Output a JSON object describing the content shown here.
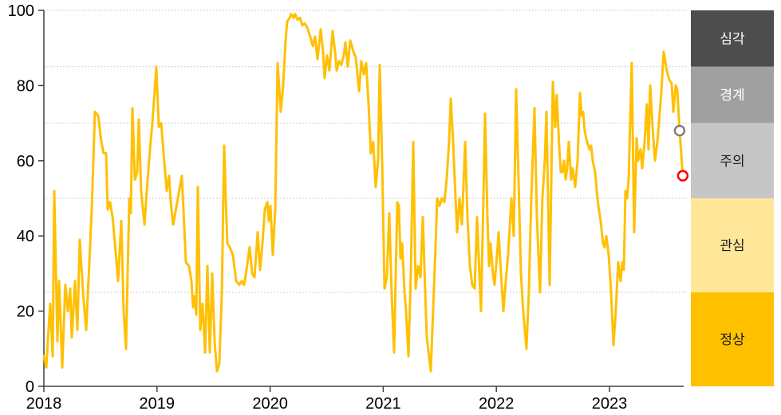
{
  "chart_data": {
    "type": "line",
    "title": "",
    "xlabel": "",
    "ylabel": "",
    "ylim": [
      0,
      100
    ],
    "yticks": [
      0,
      20,
      40,
      60,
      80,
      100
    ],
    "xticks": [
      2018,
      2019,
      2020,
      2021,
      2022,
      2023
    ],
    "gridlines": [
      25,
      50,
      70,
      85,
      100
    ],
    "grid_style": "dotted",
    "line_color": "#FFC003",
    "axis_color": "#404040",
    "tick_label_color": "#000000",
    "gridline_color": "#BFBFBF",
    "bands": [
      {
        "label": "심각",
        "range": [
          85,
          100
        ],
        "color": "#4D4D4D",
        "text_color": "#FFFFFF"
      },
      {
        "label": "경계",
        "range": [
          70,
          85
        ],
        "color": "#A0A0A0",
        "text_color": "#FFFFFF"
      },
      {
        "label": "주의",
        "range": [
          50,
          70
        ],
        "color": "#C6C6C6",
        "text_color": "#1A1A1A"
      },
      {
        "label": "관심",
        "range": [
          25,
          50
        ],
        "color": "#FFE699",
        "text_color": "#1A1A1A"
      },
      {
        "label": "정상",
        "range": [
          0,
          25
        ],
        "color": "#FFC000",
        "text_color": "#1A1A1A"
      }
    ],
    "markers": [
      {
        "x": 2023.62,
        "y": 68,
        "stroke": "#7F7F7F",
        "fill": "#FFFFFF",
        "name": "previous-point-marker"
      },
      {
        "x": 2023.648,
        "y": 56,
        "stroke": "#FF0000",
        "fill": "#FFFFFF",
        "name": "latest-point-marker"
      }
    ],
    "series": [
      {
        "name": "index",
        "color": "#FFC003",
        "points": [
          [
            2018.0,
            8
          ],
          [
            2018.021,
            5
          ],
          [
            2018.056,
            22
          ],
          [
            2018.078,
            8
          ],
          [
            2018.092,
            52
          ],
          [
            2018.12,
            12
          ],
          [
            2018.134,
            28
          ],
          [
            2018.162,
            5
          ],
          [
            2018.19,
            27
          ],
          [
            2018.212,
            20
          ],
          [
            2018.233,
            26
          ],
          [
            2018.247,
            13
          ],
          [
            2018.275,
            28
          ],
          [
            2018.296,
            15
          ],
          [
            2018.317,
            39
          ],
          [
            2018.346,
            25
          ],
          [
            2018.374,
            15
          ],
          [
            2018.402,
            33
          ],
          [
            2018.423,
            47
          ],
          [
            2018.451,
            73
          ],
          [
            2018.48,
            72
          ],
          [
            2018.508,
            65
          ],
          [
            2018.529,
            62
          ],
          [
            2018.55,
            62
          ],
          [
            2018.564,
            47
          ],
          [
            2018.585,
            49
          ],
          [
            2018.607,
            45
          ],
          [
            2018.628,
            38
          ],
          [
            2018.656,
            28
          ],
          [
            2018.684,
            44
          ],
          [
            2018.705,
            20
          ],
          [
            2018.726,
            10
          ],
          [
            2018.755,
            50
          ],
          [
            2018.769,
            46
          ],
          [
            2018.783,
            74
          ],
          [
            2018.804,
            55
          ],
          [
            2018.825,
            57
          ],
          [
            2018.839,
            71
          ],
          [
            2018.86,
            52
          ],
          [
            2018.889,
            43
          ],
          [
            2018.91,
            52
          ],
          [
            2018.938,
            63
          ],
          [
            2018.959,
            70
          ],
          [
            2018.98,
            79
          ],
          [
            2018.994,
            85
          ],
          [
            2019.016,
            69
          ],
          [
            2019.037,
            70
          ],
          [
            2019.058,
            62
          ],
          [
            2019.086,
            52
          ],
          [
            2019.107,
            56
          ],
          [
            2019.121,
            49
          ],
          [
            2019.143,
            43
          ],
          [
            2019.22,
            56
          ],
          [
            2019.255,
            33
          ],
          [
            2019.283,
            32
          ],
          [
            2019.305,
            28
          ],
          [
            2019.319,
            21
          ],
          [
            2019.333,
            24
          ],
          [
            2019.347,
            19
          ],
          [
            2019.361,
            53
          ],
          [
            2019.382,
            15
          ],
          [
            2019.403,
            22
          ],
          [
            2019.425,
            9
          ],
          [
            2019.446,
            32
          ],
          [
            2019.467,
            9
          ],
          [
            2019.488,
            30
          ],
          [
            2019.509,
            12
          ],
          [
            2019.53,
            4
          ],
          [
            2019.551,
            6
          ],
          [
            2019.573,
            25
          ],
          [
            2019.594,
            64
          ],
          [
            2019.608,
            50
          ],
          [
            2019.622,
            38
          ],
          [
            2019.643,
            37
          ],
          [
            2019.671,
            35
          ],
          [
            2019.7,
            28
          ],
          [
            2019.728,
            27
          ],
          [
            2019.749,
            28
          ],
          [
            2019.77,
            27
          ],
          [
            2019.791,
            31
          ],
          [
            2019.819,
            37
          ],
          [
            2019.841,
            30
          ],
          [
            2019.862,
            29
          ],
          [
            2019.89,
            41
          ],
          [
            2019.911,
            31
          ],
          [
            2019.932,
            38
          ],
          [
            2019.953,
            47
          ],
          [
            2019.975,
            49
          ],
          [
            2019.989,
            44
          ],
          [
            2020.003,
            48
          ],
          [
            2020.024,
            35
          ],
          [
            2020.045,
            47
          ],
          [
            2020.066,
            86
          ],
          [
            2020.094,
            73
          ],
          [
            2020.115,
            80
          ],
          [
            2020.137,
            92
          ],
          [
            2020.151,
            97
          ],
          [
            2020.172,
            98
          ],
          [
            2020.186,
            99
          ],
          [
            2020.207,
            98
          ],
          [
            2020.221,
            99
          ],
          [
            2020.243,
            97.5
          ],
          [
            2020.264,
            98
          ],
          [
            2020.285,
            96
          ],
          [
            2020.306,
            96.5
          ],
          [
            2020.327,
            95.5
          ],
          [
            2020.355,
            93
          ],
          [
            2020.377,
            90.5
          ],
          [
            2020.398,
            93
          ],
          [
            2020.419,
            87
          ],
          [
            2020.447,
            95
          ],
          [
            2020.468,
            89
          ],
          [
            2020.482,
            82
          ],
          [
            2020.503,
            88
          ],
          [
            2020.524,
            84
          ],
          [
            2020.553,
            94.5
          ],
          [
            2020.574,
            89
          ],
          [
            2020.588,
            84
          ],
          [
            2020.609,
            86.5
          ],
          [
            2020.63,
            85.5
          ],
          [
            2020.651,
            88
          ],
          [
            2020.666,
            91.5
          ],
          [
            2020.687,
            85
          ],
          [
            2020.708,
            92
          ],
          [
            2020.736,
            89
          ],
          [
            2020.757,
            87.5
          ],
          [
            2020.786,
            78.5
          ],
          [
            2020.807,
            86.5
          ],
          [
            2020.828,
            83
          ],
          [
            2020.849,
            86
          ],
          [
            2020.87,
            75
          ],
          [
            2020.891,
            62
          ],
          [
            2020.912,
            65
          ],
          [
            2020.933,
            53
          ],
          [
            2020.954,
            60
          ],
          [
            2020.969,
            85.5
          ],
          [
            2020.99,
            60
          ],
          [
            2021.011,
            26
          ],
          [
            2021.032,
            29
          ],
          [
            2021.053,
            46
          ],
          [
            2021.074,
            25
          ],
          [
            2021.096,
            9
          ],
          [
            2021.124,
            49
          ],
          [
            2021.138,
            48
          ],
          [
            2021.152,
            34
          ],
          [
            2021.167,
            38
          ],
          [
            2021.188,
            25
          ],
          [
            2021.202,
            20
          ],
          [
            2021.223,
            8
          ],
          [
            2021.244,
            30
          ],
          [
            2021.265,
            65
          ],
          [
            2021.286,
            26
          ],
          [
            2021.308,
            32
          ],
          [
            2021.329,
            29
          ],
          [
            2021.35,
            45
          ],
          [
            2021.371,
            25
          ],
          [
            2021.385,
            13
          ],
          [
            2021.42,
            4
          ],
          [
            2021.441,
            20
          ],
          [
            2021.463,
            38
          ],
          [
            2021.477,
            50
          ],
          [
            2021.498,
            48
          ],
          [
            2021.519,
            50
          ],
          [
            2021.54,
            49
          ],
          [
            2021.561,
            55
          ],
          [
            2021.582,
            65
          ],
          [
            2021.597,
            76.5
          ],
          [
            2021.618,
            65
          ],
          [
            2021.632,
            55
          ],
          [
            2021.653,
            41
          ],
          [
            2021.674,
            50
          ],
          [
            2021.695,
            43
          ],
          [
            2021.724,
            65
          ],
          [
            2021.745,
            45
          ],
          [
            2021.766,
            32
          ],
          [
            2021.787,
            27
          ],
          [
            2021.808,
            26
          ],
          [
            2021.829,
            45
          ],
          [
            2021.85,
            30
          ],
          [
            2021.864,
            20
          ],
          [
            2021.886,
            50
          ],
          [
            2021.9,
            72.5
          ],
          [
            2021.921,
            45
          ],
          [
            2021.935,
            32
          ],
          [
            2021.949,
            38
          ],
          [
            2021.97,
            30
          ],
          [
            2021.984,
            27
          ],
          [
            2022.006,
            35
          ],
          [
            2022.02,
            41
          ],
          [
            2022.041,
            30
          ],
          [
            2022.062,
            20
          ],
          [
            2022.083,
            28
          ],
          [
            2022.104,
            35
          ],
          [
            2022.133,
            50
          ],
          [
            2022.154,
            40
          ],
          [
            2022.175,
            79
          ],
          [
            2022.196,
            55
          ],
          [
            2022.217,
            30
          ],
          [
            2022.238,
            20
          ],
          [
            2022.266,
            10
          ],
          [
            2022.287,
            25
          ],
          [
            2022.309,
            50
          ],
          [
            2022.337,
            74
          ],
          [
            2022.358,
            45
          ],
          [
            2022.386,
            25
          ],
          [
            2022.407,
            50
          ],
          [
            2022.428,
            60
          ],
          [
            2022.443,
            73
          ],
          [
            2022.471,
            27
          ],
          [
            2022.499,
            81
          ],
          [
            2022.52,
            69
          ],
          [
            2022.534,
            77.5
          ],
          [
            2022.555,
            64
          ],
          [
            2022.57,
            57
          ],
          [
            2022.584,
            57
          ],
          [
            2022.598,
            60
          ],
          [
            2022.612,
            55
          ],
          [
            2022.626,
            58
          ],
          [
            2022.64,
            65
          ],
          [
            2022.661,
            55
          ],
          [
            2022.675,
            58
          ],
          [
            2022.697,
            53
          ],
          [
            2022.718,
            60
          ],
          [
            2022.739,
            78
          ],
          [
            2022.753,
            72
          ],
          [
            2022.767,
            73
          ],
          [
            2022.781,
            68
          ],
          [
            2022.802,
            65
          ],
          [
            2022.823,
            63
          ],
          [
            2022.838,
            64
          ],
          [
            2022.852,
            60
          ],
          [
            2022.873,
            57
          ],
          [
            2022.887,
            52
          ],
          [
            2022.901,
            48
          ],
          [
            2022.922,
            44
          ],
          [
            2022.943,
            38
          ],
          [
            2022.957,
            37
          ],
          [
            2022.972,
            40
          ],
          [
            2022.993,
            35
          ],
          [
            2023.014,
            25
          ],
          [
            2023.035,
            11
          ],
          [
            2023.056,
            20
          ],
          [
            2023.077,
            33
          ],
          [
            2023.098,
            28
          ],
          [
            2023.113,
            33
          ],
          [
            2023.127,
            31
          ],
          [
            2023.141,
            52
          ],
          [
            2023.155,
            50
          ],
          [
            2023.169,
            55
          ],
          [
            2023.197,
            86
          ],
          [
            2023.218,
            41
          ],
          [
            2023.24,
            66
          ],
          [
            2023.254,
            60
          ],
          [
            2023.275,
            63
          ],
          [
            2023.289,
            58
          ],
          [
            2023.31,
            65
          ],
          [
            2023.331,
            75
          ],
          [
            2023.345,
            63
          ],
          [
            2023.36,
            80
          ],
          [
            2023.381,
            69
          ],
          [
            2023.402,
            60
          ],
          [
            2023.423,
            65
          ],
          [
            2023.437,
            70
          ],
          [
            2023.458,
            78
          ],
          [
            2023.479,
            89
          ],
          [
            2023.507,
            84
          ],
          [
            2023.529,
            81.5
          ],
          [
            2023.55,
            80.5
          ],
          [
            2023.564,
            73
          ],
          [
            2023.585,
            80
          ],
          [
            2023.599,
            79
          ],
          [
            2023.62,
            68
          ],
          [
            2023.648,
            56
          ]
        ]
      }
    ]
  }
}
